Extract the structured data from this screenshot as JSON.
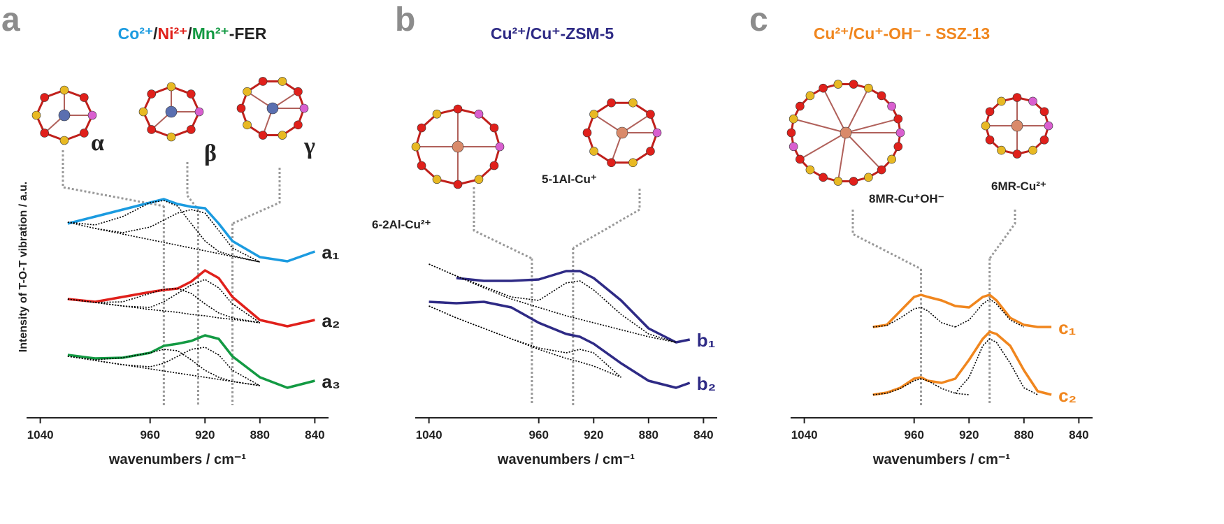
{
  "chart_data": [
    {
      "type": "line",
      "panel": "a",
      "title_parts": [
        {
          "text": "Co²⁺",
          "color": "#1b9be0"
        },
        {
          "text": "/",
          "color": "#222222"
        },
        {
          "text": "Ni²⁺",
          "color": "#e0201b"
        },
        {
          "text": "/",
          "color": "#222222"
        },
        {
          "text": "Mn²⁺",
          "color": "#139a43"
        },
        {
          "text": "-FER",
          "color": "#222222"
        }
      ],
      "xlabel": "wavenumbers / cm⁻¹",
      "ylabel": "Intensity of T-O-T vibration / a.u.",
      "annotations": [
        "α",
        "β",
        "γ"
      ],
      "label_color": "#222222",
      "xlim": [
        1050,
        830
      ],
      "ylim": [
        0,
        10
      ],
      "xticks": [
        1040,
        960,
        920,
        880,
        840
      ],
      "guides_x": [
        950,
        925,
        900
      ],
      "x": [
        1020,
        1000,
        980,
        960,
        950,
        940,
        930,
        920,
        910,
        900,
        880,
        860,
        840
      ],
      "series": [
        {
          "name": "a₁",
          "color": "#1b9be0",
          "values": [
            5.56,
            5.76,
            5.96,
            6.16,
            6.26,
            6.12,
            6.04,
            6.0,
            5.56,
            5.06,
            4.6,
            4.48,
            4.76
          ]
        },
        {
          "color": "#000000",
          "dash": true,
          "values": [
            5.6,
            5.42,
            5.26,
            5.1,
            5.02,
            4.94,
            4.86,
            4.78,
            4.7,
            4.62,
            4.46,
            null,
            null
          ]
        },
        {
          "color": "#000000",
          "dash": true,
          "values": [
            5.6,
            5.52,
            5.76,
            6.16,
            6.22,
            6.06,
            5.56,
            5.06,
            4.76,
            4.64,
            4.46,
            null,
            null
          ]
        },
        {
          "color": "#000000",
          "dash": true,
          "values": [
            null,
            5.42,
            5.3,
            5.46,
            5.66,
            5.86,
            5.96,
            5.86,
            5.36,
            4.86,
            4.46,
            null,
            null
          ]
        },
        {
          "name": "a₂",
          "color": "#e0201b",
          "values": [
            3.4,
            3.32,
            3.46,
            3.6,
            3.66,
            3.7,
            3.9,
            4.22,
            4.0,
            3.46,
            2.8,
            2.62,
            2.8
          ]
        },
        {
          "color": "#000000",
          "dash": true,
          "values": [
            3.4,
            3.3,
            3.2,
            3.1,
            3.06,
            3.02,
            2.96,
            2.92,
            2.86,
            2.82,
            2.72,
            null,
            null
          ]
        },
        {
          "color": "#000000",
          "dash": true,
          "values": [
            3.4,
            3.3,
            3.32,
            3.56,
            3.68,
            3.7,
            3.56,
            3.26,
            3.0,
            2.86,
            2.72,
            null,
            null
          ]
        },
        {
          "color": "#000000",
          "dash": true,
          "values": [
            null,
            3.3,
            3.2,
            3.16,
            3.32,
            3.56,
            3.8,
            3.96,
            3.72,
            3.26,
            2.72,
            null,
            null
          ]
        },
        {
          "name": "a₃",
          "color": "#139a43",
          "values": [
            1.8,
            1.7,
            1.72,
            1.86,
            2.06,
            2.12,
            2.2,
            2.36,
            2.26,
            1.76,
            1.16,
            0.86,
            1.06
          ]
        },
        {
          "color": "#000000",
          "dash": true,
          "values": [
            1.76,
            1.64,
            1.52,
            1.4,
            1.34,
            1.28,
            1.22,
            1.16,
            1.1,
            1.04,
            0.92,
            null,
            null
          ]
        },
        {
          "color": "#000000",
          "dash": true,
          "values": [
            1.76,
            1.66,
            1.72,
            1.86,
            1.96,
            1.92,
            1.66,
            1.36,
            1.16,
            1.04,
            0.92,
            null,
            null
          ]
        },
        {
          "color": "#000000",
          "dash": true,
          "values": [
            null,
            1.64,
            1.52,
            1.46,
            1.56,
            1.76,
            1.96,
            2.02,
            1.8,
            1.36,
            0.92,
            null,
            null
          ]
        }
      ]
    },
    {
      "type": "line",
      "panel": "b",
      "title_parts": [
        {
          "text": "Cu²⁺/Cu⁺-ZSM-5",
          "color": "#2e2a85"
        }
      ],
      "xlabel": "wavenumbers / cm⁻¹",
      "annotations": [
        "6-2Al-Cu²⁺",
        "5-1Al-Cu⁺"
      ],
      "label_color": "#2e2a85",
      "xlim": [
        1050,
        830
      ],
      "ylim": [
        0,
        10
      ],
      "xticks": [
        1040,
        960,
        920,
        880,
        840
      ],
      "guides_x": [
        965,
        935
      ],
      "x": [
        1040,
        1020,
        1000,
        980,
        960,
        940,
        930,
        920,
        900,
        880,
        860,
        850
      ],
      "series": [
        {
          "name": "b₁",
          "color": "#2e2a85",
          "values": [
            null,
            4.0,
            3.92,
            3.92,
            3.96,
            4.2,
            4.2,
            4.0,
            3.36,
            2.56,
            2.16,
            2.24
          ]
        },
        {
          "color": "#000000",
          "dash": true,
          "values": [
            4.4,
            4.06,
            3.72,
            3.4,
            3.16,
            2.92,
            2.82,
            2.72,
            2.52,
            2.32,
            2.16,
            null
          ]
        },
        {
          "color": "#000000",
          "dash": true,
          "values": [
            4.4,
            4.06,
            3.76,
            3.46,
            3.36,
            3.86,
            3.92,
            3.66,
            2.96,
            2.4,
            2.16,
            null
          ]
        },
        {
          "name": "b₂",
          "color": "#2e2a85",
          "values": [
            3.32,
            3.28,
            3.32,
            3.16,
            2.72,
            2.4,
            2.32,
            2.12,
            1.56,
            1.06,
            0.86,
            1.0
          ]
        },
        {
          "color": "#000000",
          "dash": true,
          "values": [
            3.2,
            2.86,
            2.56,
            2.26,
            1.96,
            1.7,
            1.6,
            1.48,
            1.16,
            null,
            null,
            null
          ]
        },
        {
          "color": "#000000",
          "dash": true,
          "values": [
            3.2,
            2.86,
            2.56,
            2.26,
            2.0,
            1.86,
            1.96,
            1.86,
            1.16,
            null,
            null,
            null
          ]
        }
      ]
    },
    {
      "type": "line",
      "panel": "c",
      "title_parts": [
        {
          "text": "Cu²⁺/Cu⁺-OH⁻ - SSZ-13",
          "color": "#f0861e"
        }
      ],
      "xlabel": "wavenumbers / cm⁻¹",
      "annotations": [
        "8MR-Cu⁺OH⁻",
        "6MR-Cu²⁺"
      ],
      "label_color": "#f0861e",
      "xlim": [
        1050,
        830
      ],
      "ylim": [
        0,
        10
      ],
      "xticks": [
        1040,
        960,
        920,
        880,
        840
      ],
      "guides_x": [
        955,
        905
      ],
      "x": [
        990,
        980,
        970,
        960,
        955,
        950,
        940,
        930,
        920,
        910,
        905,
        900,
        890,
        880,
        870,
        860
      ],
      "series": [
        {
          "name": "c₁",
          "color": "#f0861e",
          "values": [
            2.6,
            2.66,
            3.06,
            3.46,
            3.52,
            3.46,
            3.36,
            3.2,
            3.16,
            3.46,
            3.52,
            3.36,
            2.86,
            2.66,
            2.6,
            2.6
          ]
        },
        {
          "color": "#000000",
          "dash": true,
          "values": [
            2.6,
            2.64,
            2.86,
            3.12,
            3.16,
            3.06,
            2.72,
            2.6,
            null,
            null,
            null,
            null,
            null,
            null,
            null,
            null
          ]
        },
        {
          "color": "#000000",
          "dash": true,
          "values": [
            null,
            null,
            null,
            null,
            null,
            null,
            null,
            2.6,
            2.8,
            3.26,
            3.4,
            3.26,
            2.8,
            2.6,
            null,
            null
          ]
        },
        {
          "name": "c₂",
          "color": "#f0861e",
          "values": [
            0.66,
            0.72,
            0.86,
            1.12,
            1.16,
            1.06,
            1.0,
            1.12,
            1.66,
            2.26,
            2.46,
            2.4,
            2.06,
            1.36,
            0.76,
            0.66
          ]
        },
        {
          "color": "#000000",
          "dash": true,
          "values": [
            0.66,
            0.7,
            0.84,
            1.06,
            1.12,
            1.06,
            0.84,
            0.7,
            0.66,
            null,
            null,
            null,
            null,
            null,
            null,
            null
          ]
        },
        {
          "color": "#000000",
          "dash": true,
          "values": [
            null,
            null,
            null,
            null,
            null,
            null,
            null,
            0.7,
            1.16,
            2.06,
            2.26,
            2.16,
            1.56,
            0.86,
            0.66,
            null
          ]
        }
      ]
    }
  ]
}
